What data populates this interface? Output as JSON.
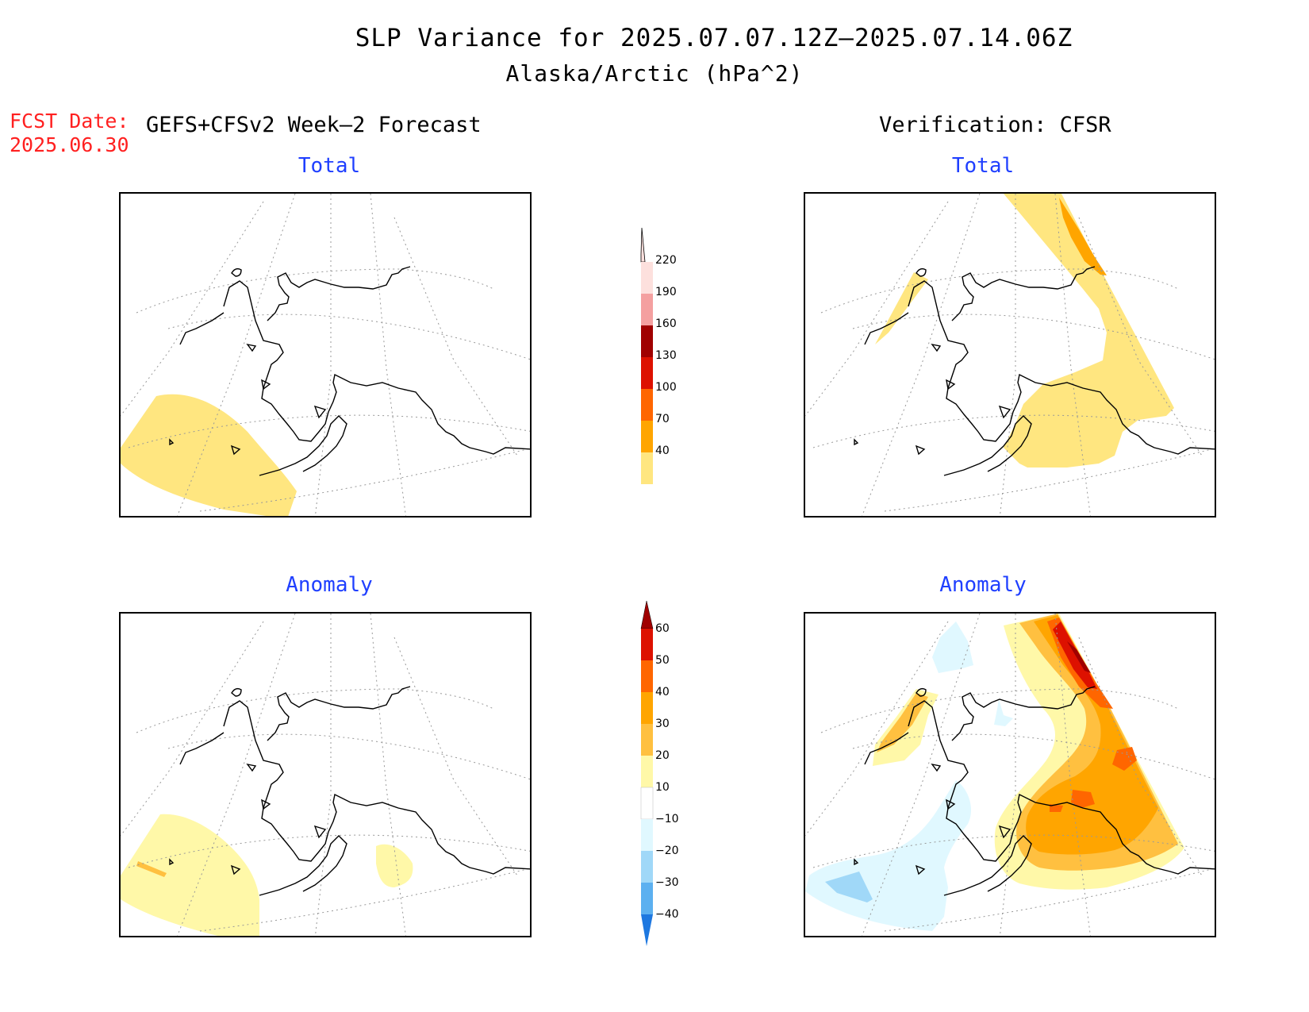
{
  "title_line1": "SLP Variance for 2025.07.07.12Z–2025.07.14.06Z",
  "title_line2": "Alaska/Arctic (hPa^2)",
  "fcst_label": "FCST Date:",
  "fcst_date": "2025.06.30",
  "left_heading": "GEFS+CFSv2 Week–2 Forecast",
  "right_heading": "Verification: CFSR",
  "panels": {
    "forecast_total": {
      "title": "Total"
    },
    "verification_total": {
      "title": "Total"
    },
    "forecast_anomaly": {
      "title": "Anomaly"
    },
    "verification_anomaly": {
      "title": "Anomaly"
    }
  },
  "colorbar_total": {
    "labels": [
      "220",
      "190",
      "160",
      "130",
      "100",
      "70",
      "40"
    ],
    "colors": [
      "#fde0dd",
      "#f4a0a0",
      "#a00000",
      "#dd1100",
      "#ff6600",
      "#ffa500",
      "#ffe680"
    ]
  },
  "colorbar_anomaly": {
    "labels": [
      "60",
      "50",
      "40",
      "30",
      "20",
      "10",
      "−10",
      "−20",
      "−30",
      "−40"
    ],
    "colors": [
      "#a00000",
      "#dd1100",
      "#ff6600",
      "#ffa500",
      "#ffc040",
      "#fff8a8",
      "#ffffff",
      "#e0f8ff",
      "#a0d8f8",
      "#5cb0f0",
      "#1e78e0"
    ]
  }
}
